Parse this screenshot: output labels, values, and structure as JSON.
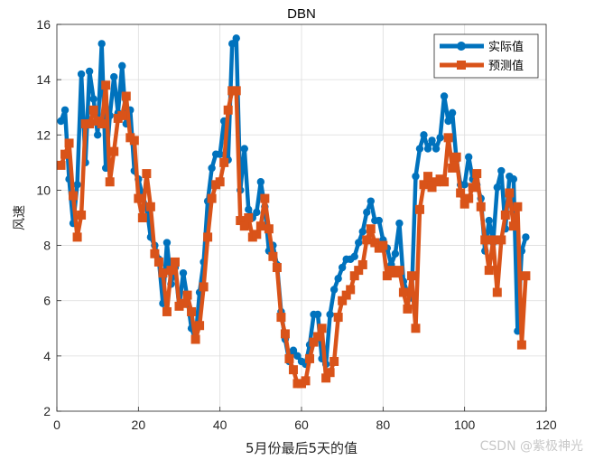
{
  "chart_data": {
    "type": "line",
    "title": "DBN",
    "xlabel": "5月份最后5天的值",
    "ylabel": "风速",
    "xlim": [
      0,
      120
    ],
    "ylim": [
      2,
      16
    ],
    "xticks": [
      0,
      20,
      40,
      60,
      80,
      100,
      120
    ],
    "yticks": [
      2,
      4,
      6,
      8,
      10,
      12,
      14,
      16
    ],
    "grid": true,
    "legend_position": "top-right",
    "series": [
      {
        "name": "实际值",
        "color": "#0072BD",
        "marker": "circle",
        "values": [
          12.5,
          12.9,
          10.4,
          8.8,
          10.2,
          14.2,
          11.0,
          14.3,
          13.3,
          12.0,
          15.3,
          10.8,
          12.7,
          14.1,
          12.8,
          14.5,
          12.4,
          12.9,
          10.7,
          10.4,
          9.8,
          9.4,
          8.3,
          8.0,
          7.5,
          5.9,
          8.1,
          6.6,
          7.2,
          5.8,
          7.0,
          6.1,
          5.0,
          4.6,
          6.3,
          7.4,
          9.6,
          10.8,
          11.3,
          11.3,
          12.5,
          11.1,
          15.3,
          15.5,
          10.0,
          11.5,
          9.3,
          9.0,
          9.2,
          10.3,
          9.4,
          7.8,
          8.0,
          7.3,
          5.6,
          4.6,
          3.8,
          4.2,
          4.0,
          3.8,
          3.7,
          4.4,
          5.5,
          5.5,
          3.9,
          3.7,
          5.5,
          6.4,
          6.8,
          7.2,
          7.5,
          7.5,
          7.6,
          8.1,
          8.5,
          9.2,
          9.6,
          8.9,
          8.9,
          8.2,
          7.9,
          7.3,
          7.7,
          8.8,
          6.7,
          6.3,
          6.1,
          10.5,
          11.5,
          12.0,
          11.5,
          11.8,
          11.5,
          11.9,
          13.4,
          12.5,
          12.8,
          11.1,
          10.2,
          10.2,
          11.2,
          10.4,
          10.2,
          9.7,
          7.8,
          8.9,
          8.1,
          10.1,
          10.7,
          8.6,
          10.5,
          10.4,
          4.9,
          7.8,
          8.3
        ]
      },
      {
        "name": "预测值",
        "color": "#D95319",
        "marker": "square",
        "values": [
          10.9,
          11.3,
          11.7,
          9.8,
          8.3,
          9.1,
          12.4,
          12.4,
          12.9,
          12.5,
          12.4,
          13.8,
          10.3,
          11.4,
          12.6,
          12.7,
          13.4,
          11.9,
          11.8,
          9.7,
          9.0,
          10.6,
          9.4,
          7.7,
          7.4,
          7.0,
          5.6,
          7.1,
          7.4,
          5.8,
          5.9,
          6.2,
          5.6,
          4.6,
          5.1,
          6.5,
          8.3,
          9.7,
          10.2,
          10.3,
          11.0,
          12.9,
          13.6,
          13.6,
          8.9,
          8.7,
          9.0,
          8.3,
          8.4,
          8.7,
          9.7,
          8.6,
          7.6,
          7.2,
          5.4,
          4.8,
          3.9,
          3.5,
          3.0,
          3.0,
          3.1,
          3.9,
          4.5,
          4.7,
          5.0,
          3.2,
          3.4,
          3.8,
          5.4,
          6.0,
          6.2,
          6.4,
          6.9,
          7.1,
          7.3,
          8.2,
          8.6,
          8.1,
          7.9,
          8.0,
          6.9,
          7.1,
          7.0,
          7.1,
          6.3,
          5.7,
          6.9,
          5.0,
          9.3,
          10.2,
          10.5,
          10.1,
          10.3,
          10.4,
          10.3,
          11.9,
          10.8,
          11.2,
          9.9,
          9.5,
          9.7,
          10.1,
          10.6,
          9.4,
          8.2,
          7.1,
          8.2,
          6.3,
          8.2,
          9.1,
          9.9,
          8.7,
          9.4,
          4.4,
          6.9
        ]
      }
    ]
  },
  "watermark": "CSDN @紫极神光"
}
